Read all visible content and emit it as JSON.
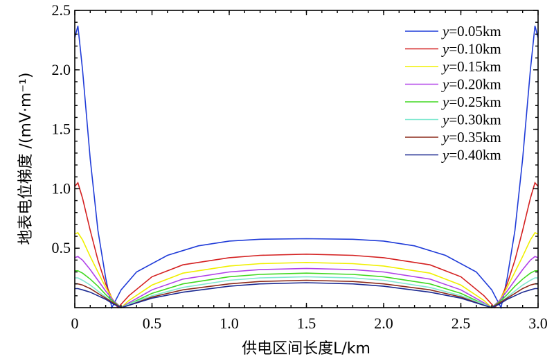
{
  "chart_data": {
    "type": "line",
    "xlabel": "供电区间长度L/km",
    "ylabel": "地表电位梯度 /(mV·m⁻¹)",
    "xlim": [
      0,
      3.0
    ],
    "ylim": [
      0,
      2.5
    ],
    "xticks": [
      "0",
      "0.5",
      "1.0",
      "1.5",
      "2.0",
      "2.5",
      "3.0"
    ],
    "yticks": [
      "0.5",
      "1.0",
      "1.5",
      "2.0",
      "2.5"
    ],
    "grid": false,
    "legend_position": "top-right",
    "series": [
      {
        "name": "y=0.05km",
        "legend_var": "y",
        "legend_rest": "=0.05km",
        "color": "#1f3bd8",
        "x": [
          0.0,
          0.02,
          0.05,
          0.1,
          0.15,
          0.2,
          0.24,
          0.3,
          0.4,
          0.6,
          0.8,
          1.0,
          1.2,
          1.5,
          1.8,
          2.0,
          2.2,
          2.4,
          2.6,
          2.7,
          2.76,
          2.8,
          2.85,
          2.9,
          2.95,
          2.98,
          3.0
        ],
        "y": [
          2.27,
          2.37,
          2.0,
          1.25,
          0.65,
          0.25,
          0.0,
          0.15,
          0.3,
          0.44,
          0.52,
          0.56,
          0.575,
          0.58,
          0.575,
          0.56,
          0.52,
          0.44,
          0.3,
          0.15,
          0.0,
          0.25,
          0.65,
          1.25,
          2.0,
          2.37,
          2.27
        ]
      },
      {
        "name": "y=0.10km",
        "legend_var": "y",
        "legend_rest": "=0.10km",
        "color": "#d42020",
        "x": [
          0.0,
          0.02,
          0.05,
          0.1,
          0.15,
          0.2,
          0.25,
          0.28,
          0.35,
          0.5,
          0.7,
          1.0,
          1.2,
          1.5,
          1.8,
          2.0,
          2.3,
          2.5,
          2.65,
          2.72,
          2.75,
          2.8,
          2.85,
          2.9,
          2.95,
          2.98,
          3.0
        ],
        "y": [
          1.02,
          1.05,
          0.92,
          0.65,
          0.4,
          0.2,
          0.05,
          0.0,
          0.1,
          0.26,
          0.36,
          0.42,
          0.44,
          0.45,
          0.44,
          0.42,
          0.36,
          0.26,
          0.1,
          0.0,
          0.05,
          0.2,
          0.4,
          0.65,
          0.92,
          1.05,
          1.02
        ]
      },
      {
        "name": "y=0.15km",
        "legend_var": "y",
        "legend_rest": "=0.15km",
        "color": "#f0f000",
        "x": [
          0.0,
          0.02,
          0.05,
          0.1,
          0.15,
          0.2,
          0.25,
          0.3,
          0.35,
          0.5,
          0.7,
          1.0,
          1.2,
          1.5,
          1.8,
          2.0,
          2.3,
          2.5,
          2.65,
          2.7,
          2.75,
          2.8,
          2.85,
          2.9,
          2.95,
          2.98,
          3.0
        ],
        "y": [
          0.62,
          0.63,
          0.57,
          0.43,
          0.3,
          0.17,
          0.06,
          0.0,
          0.06,
          0.19,
          0.29,
          0.35,
          0.37,
          0.38,
          0.37,
          0.35,
          0.29,
          0.19,
          0.06,
          0.0,
          0.06,
          0.17,
          0.3,
          0.43,
          0.57,
          0.63,
          0.62
        ]
      },
      {
        "name": "y=0.20km",
        "legend_var": "y",
        "legend_rest": "=0.20km",
        "color": "#b040e8",
        "x": [
          0.0,
          0.02,
          0.05,
          0.1,
          0.15,
          0.2,
          0.25,
          0.3,
          0.35,
          0.5,
          0.7,
          1.0,
          1.2,
          1.5,
          1.8,
          2.0,
          2.3,
          2.5,
          2.65,
          2.7,
          2.75,
          2.8,
          2.85,
          2.9,
          2.95,
          2.98,
          3.0
        ],
        "y": [
          0.42,
          0.43,
          0.4,
          0.32,
          0.23,
          0.14,
          0.06,
          0.0,
          0.04,
          0.15,
          0.24,
          0.3,
          0.32,
          0.33,
          0.32,
          0.3,
          0.24,
          0.15,
          0.04,
          0.0,
          0.06,
          0.14,
          0.23,
          0.32,
          0.4,
          0.43,
          0.42
        ]
      },
      {
        "name": "y=0.25km",
        "legend_var": "y",
        "legend_rest": "=0.25km",
        "color": "#40d820",
        "x": [
          0.0,
          0.02,
          0.05,
          0.1,
          0.15,
          0.2,
          0.25,
          0.3,
          0.35,
          0.5,
          0.7,
          1.0,
          1.2,
          1.5,
          1.8,
          2.0,
          2.3,
          2.5,
          2.65,
          2.7,
          2.75,
          2.8,
          2.85,
          2.9,
          2.95,
          2.98,
          3.0
        ],
        "y": [
          0.31,
          0.31,
          0.29,
          0.24,
          0.18,
          0.11,
          0.05,
          0.0,
          0.03,
          0.12,
          0.2,
          0.26,
          0.28,
          0.29,
          0.28,
          0.26,
          0.2,
          0.12,
          0.03,
          0.0,
          0.05,
          0.11,
          0.18,
          0.24,
          0.29,
          0.31,
          0.31
        ]
      },
      {
        "name": "y=0.30km",
        "legend_var": "y",
        "legend_rest": "=0.30km",
        "color": "#80e8d0",
        "x": [
          0.0,
          0.02,
          0.05,
          0.1,
          0.15,
          0.2,
          0.25,
          0.3,
          0.35,
          0.5,
          0.7,
          1.0,
          1.2,
          1.5,
          1.8,
          2.0,
          2.3,
          2.5,
          2.65,
          2.7,
          2.75,
          2.8,
          2.85,
          2.9,
          2.95,
          2.98,
          3.0
        ],
        "y": [
          0.25,
          0.25,
          0.23,
          0.19,
          0.14,
          0.09,
          0.04,
          0.0,
          0.03,
          0.1,
          0.17,
          0.23,
          0.25,
          0.26,
          0.25,
          0.23,
          0.17,
          0.1,
          0.03,
          0.0,
          0.04,
          0.09,
          0.14,
          0.19,
          0.23,
          0.25,
          0.25
        ]
      },
      {
        "name": "y=0.35km",
        "legend_var": "y",
        "legend_rest": "=0.35km",
        "color": "#8b2a1a",
        "x": [
          0.0,
          0.02,
          0.05,
          0.1,
          0.15,
          0.2,
          0.25,
          0.3,
          0.35,
          0.5,
          0.7,
          1.0,
          1.2,
          1.5,
          1.8,
          2.0,
          2.3,
          2.5,
          2.65,
          2.7,
          2.75,
          2.8,
          2.85,
          2.9,
          2.95,
          2.98,
          3.0
        ],
        "y": [
          0.2,
          0.2,
          0.19,
          0.16,
          0.12,
          0.08,
          0.04,
          0.0,
          0.02,
          0.09,
          0.15,
          0.2,
          0.22,
          0.23,
          0.22,
          0.2,
          0.15,
          0.09,
          0.02,
          0.0,
          0.04,
          0.08,
          0.12,
          0.16,
          0.19,
          0.2,
          0.2
        ]
      },
      {
        "name": "y=0.40km",
        "legend_var": "y",
        "legend_rest": "=0.40km",
        "color": "#1a2890",
        "x": [
          0.0,
          0.02,
          0.05,
          0.1,
          0.15,
          0.2,
          0.25,
          0.3,
          0.35,
          0.5,
          0.7,
          1.0,
          1.2,
          1.5,
          1.8,
          2.0,
          2.3,
          2.5,
          2.65,
          2.7,
          2.75,
          2.8,
          2.85,
          2.9,
          2.95,
          2.98,
          3.0
        ],
        "y": [
          0.16,
          0.16,
          0.15,
          0.13,
          0.1,
          0.07,
          0.03,
          0.0,
          0.02,
          0.08,
          0.13,
          0.18,
          0.2,
          0.21,
          0.2,
          0.18,
          0.13,
          0.08,
          0.02,
          0.0,
          0.03,
          0.07,
          0.1,
          0.13,
          0.15,
          0.16,
          0.16
        ]
      }
    ]
  }
}
